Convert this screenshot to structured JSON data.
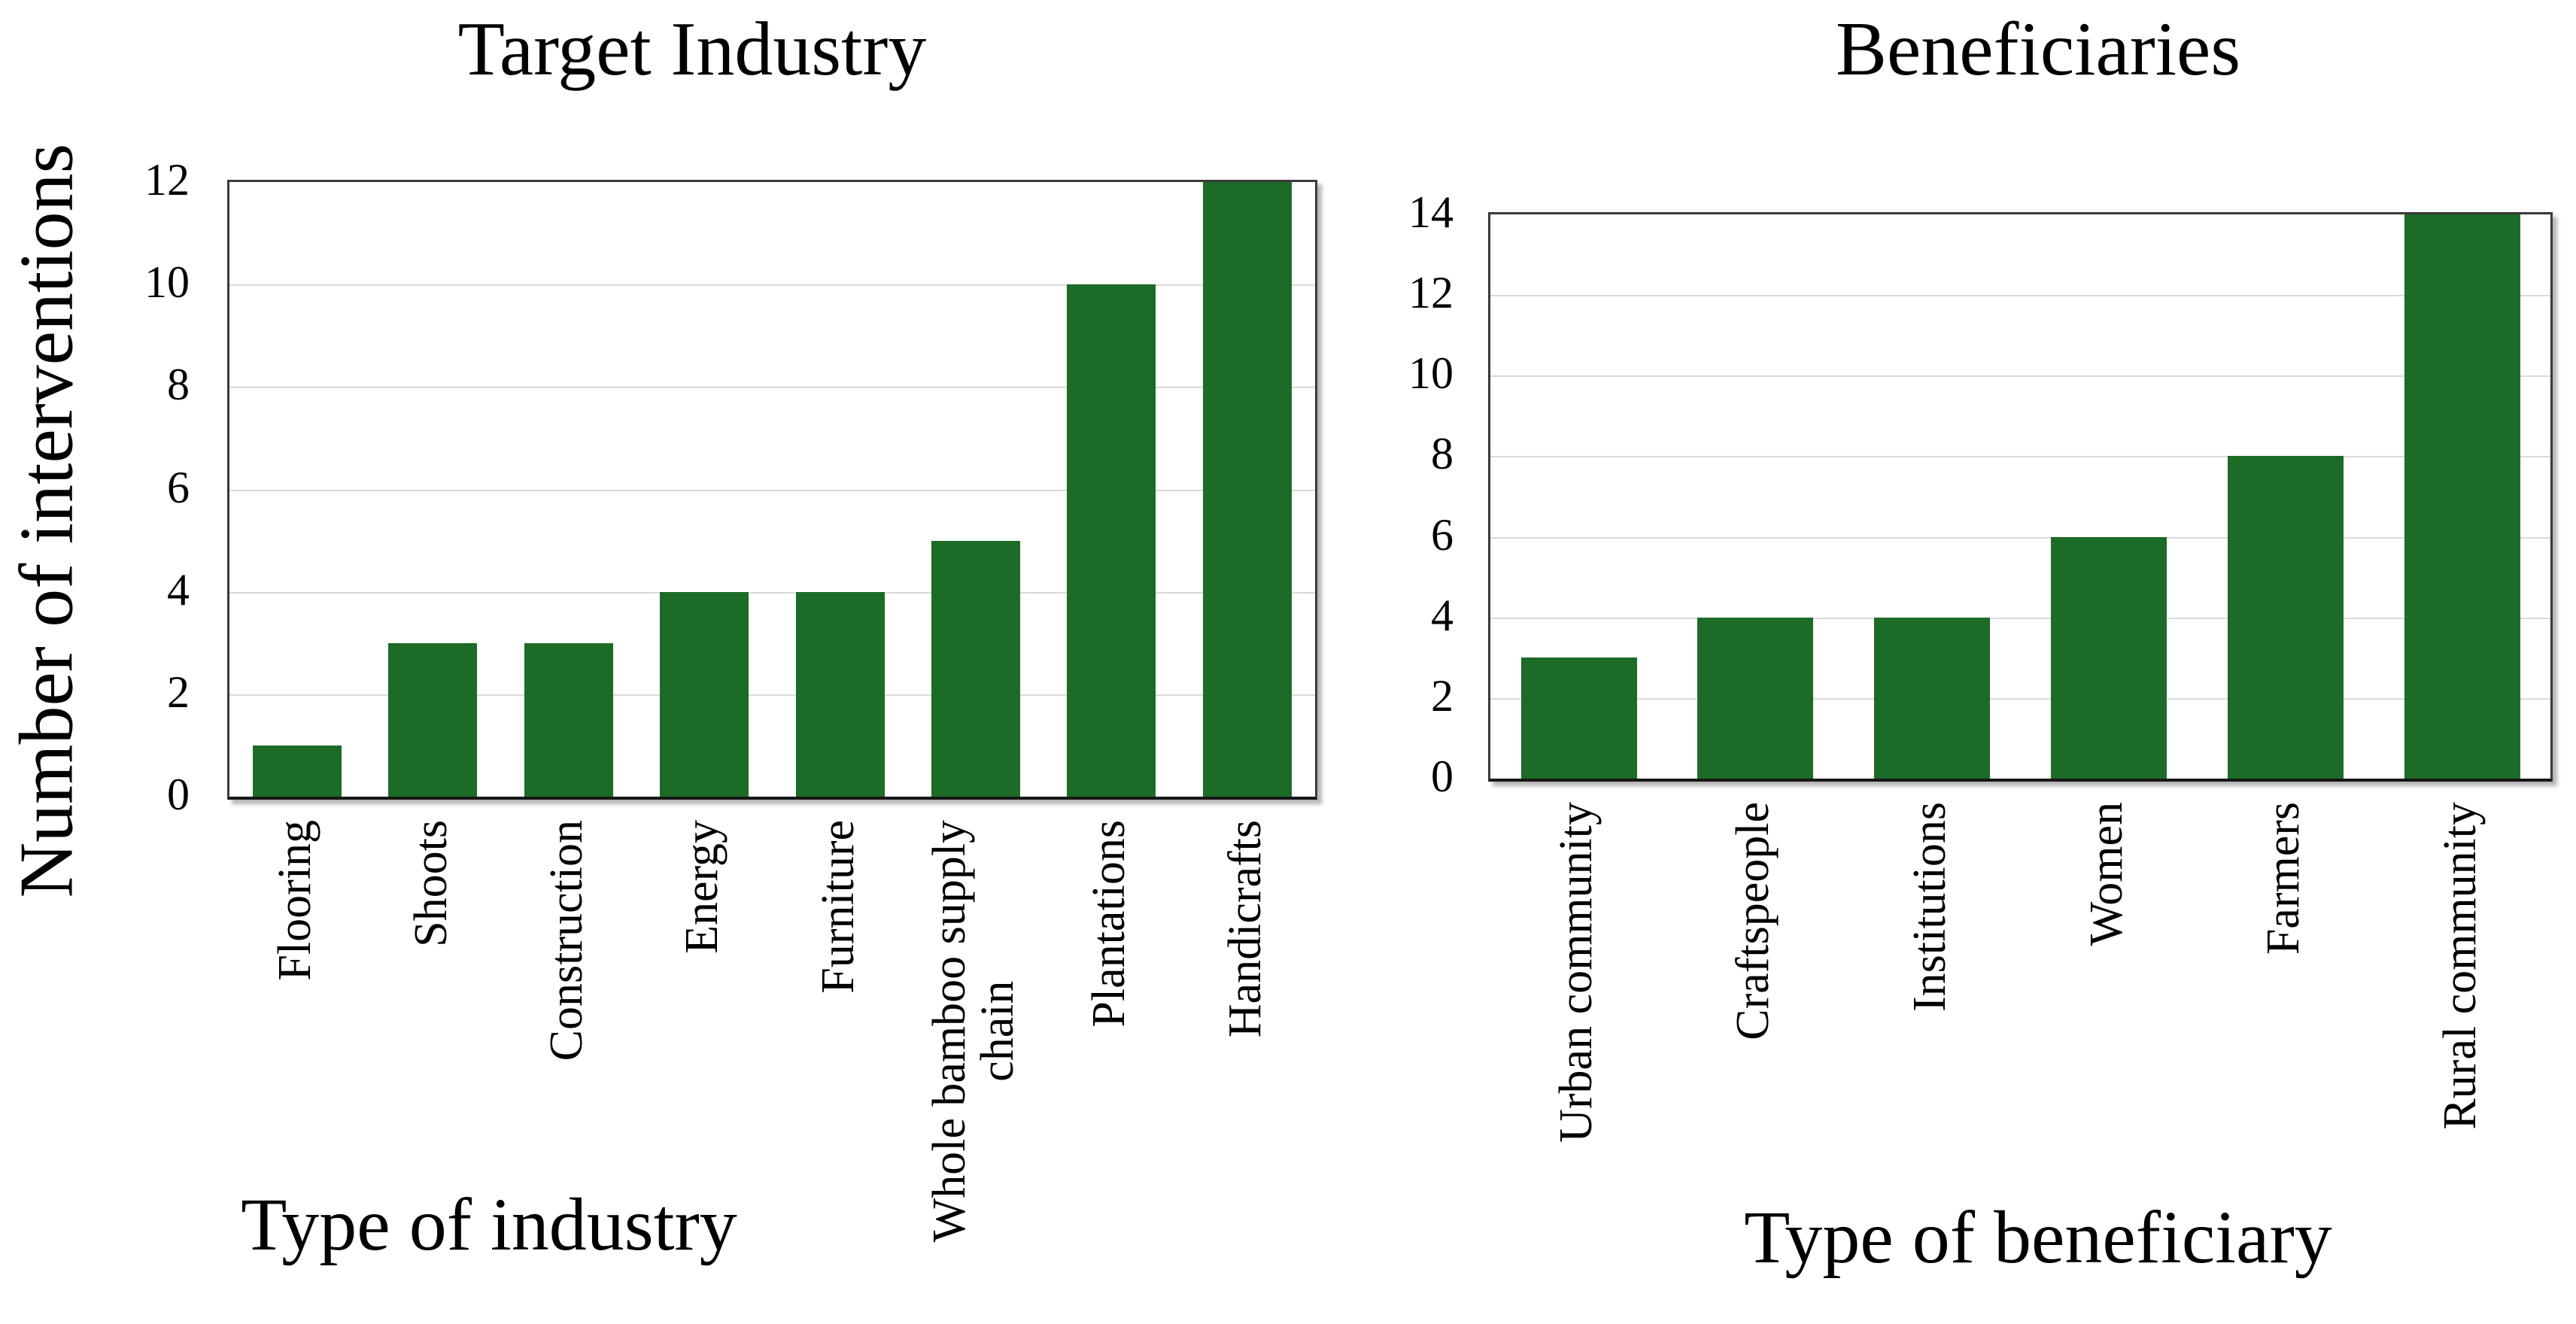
{
  "page": {
    "background": "#ffffff",
    "text_color": "#000000"
  },
  "chart_data": [
    {
      "type": "bar",
      "title": "Target Industry",
      "xlabel": "Type of industry",
      "ylabel": "Number of interventions",
      "categories": [
        "Flooring",
        "Shoots",
        "Construction",
        "Energy",
        "Furniture",
        "Whole bamboo supply\nchain",
        "Plantations",
        "Handicrafts"
      ],
      "values": [
        1,
        3,
        3,
        4,
        4,
        5,
        10,
        12
      ],
      "ylim": [
        0,
        12
      ],
      "yticks": [
        0,
        2,
        4,
        6,
        8,
        10,
        12
      ],
      "bar_color": "#1c6b26",
      "grid": true,
      "gridline_color": "#d9d9d9",
      "legend": "none"
    },
    {
      "type": "bar",
      "title": "Beneficiaries",
      "xlabel": "Type of beneficiary",
      "ylabel": "",
      "categories": [
        "Urban community",
        "Craftspeople",
        "Institutions",
        "Women",
        "Farmers",
        "Rural community"
      ],
      "values": [
        3,
        4,
        4,
        6,
        8,
        14
      ],
      "ylim": [
        0,
        14
      ],
      "yticks": [
        0,
        2,
        4,
        6,
        8,
        10,
        12,
        14
      ],
      "bar_color": "#1c6b26",
      "grid": true,
      "gridline_color": "#d9d9d9",
      "legend": "none"
    }
  ]
}
